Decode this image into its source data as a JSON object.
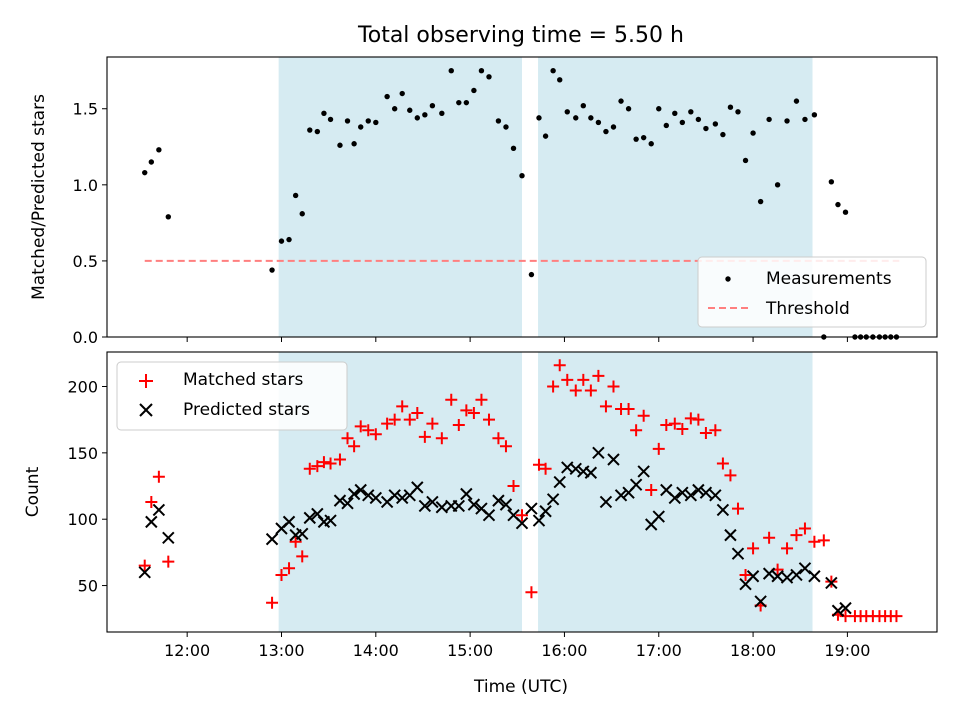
{
  "suptitle": "Total observing time = 5.50 h",
  "chart_data": [
    {
      "type": "scatter",
      "ylabel": "Matched/Predicted stars",
      "xlim": [
        11.15,
        19.95
      ],
      "ylim": [
        0,
        1.84
      ],
      "xticks": [
        12,
        13,
        14,
        15,
        16,
        17,
        18,
        19
      ],
      "yticks": [
        0.0,
        0.5,
        1.0,
        1.5
      ],
      "ytick_labels": [
        "0.0",
        "0.5",
        "1.0",
        "1.5"
      ],
      "shaded_intervals": [
        [
          12.97,
          15.55
        ],
        [
          15.72,
          18.63
        ]
      ],
      "shade_color": "#add8e6",
      "legend_position": "lower-right",
      "series": [
        {
          "name": "Measurements",
          "marker": "dot",
          "color": "#000000",
          "points": [
            [
              11.55,
              1.08
            ],
            [
              11.62,
              1.15
            ],
            [
              11.7,
              1.23
            ],
            [
              11.8,
              0.79
            ],
            [
              12.9,
              0.44
            ],
            [
              13.0,
              0.63
            ],
            [
              13.08,
              0.64
            ],
            [
              13.15,
              0.93
            ],
            [
              13.22,
              0.81
            ],
            [
              13.3,
              1.36
            ],
            [
              13.38,
              1.35
            ],
            [
              13.45,
              1.47
            ],
            [
              13.52,
              1.43
            ],
            [
              13.62,
              1.26
            ],
            [
              13.7,
              1.42
            ],
            [
              13.77,
              1.27
            ],
            [
              13.84,
              1.38
            ],
            [
              13.92,
              1.42
            ],
            [
              14.0,
              1.41
            ],
            [
              14.12,
              1.58
            ],
            [
              14.2,
              1.5
            ],
            [
              14.28,
              1.6
            ],
            [
              14.36,
              1.49
            ],
            [
              14.44,
              1.44
            ],
            [
              14.52,
              1.46
            ],
            [
              14.6,
              1.52
            ],
            [
              14.7,
              1.47
            ],
            [
              14.8,
              1.75
            ],
            [
              14.88,
              1.54
            ],
            [
              14.96,
              1.54
            ],
            [
              15.04,
              1.62
            ],
            [
              15.12,
              1.75
            ],
            [
              15.2,
              1.71
            ],
            [
              15.3,
              1.42
            ],
            [
              15.38,
              1.38
            ],
            [
              15.46,
              1.24
            ],
            [
              15.55,
              1.06
            ],
            [
              15.65,
              0.41
            ],
            [
              15.73,
              1.44
            ],
            [
              15.8,
              1.32
            ],
            [
              15.88,
              1.75
            ],
            [
              15.95,
              1.69
            ],
            [
              16.03,
              1.48
            ],
            [
              16.12,
              1.44
            ],
            [
              16.2,
              1.52
            ],
            [
              16.28,
              1.44
            ],
            [
              16.36,
              1.41
            ],
            [
              16.44,
              1.35
            ],
            [
              16.52,
              1.38
            ],
            [
              16.6,
              1.55
            ],
            [
              16.68,
              1.5
            ],
            [
              16.76,
              1.3
            ],
            [
              16.84,
              1.31
            ],
            [
              16.92,
              1.27
            ],
            [
              17.0,
              1.5
            ],
            [
              17.08,
              1.39
            ],
            [
              17.17,
              1.47
            ],
            [
              17.25,
              1.41
            ],
            [
              17.34,
              1.48
            ],
            [
              17.42,
              1.43
            ],
            [
              17.5,
              1.37
            ],
            [
              17.6,
              1.4
            ],
            [
              17.68,
              1.33
            ],
            [
              17.76,
              1.51
            ],
            [
              17.84,
              1.48
            ],
            [
              17.92,
              1.16
            ],
            [
              18.0,
              1.34
            ],
            [
              18.08,
              0.89
            ],
            [
              18.17,
              1.43
            ],
            [
              18.26,
              1.0
            ],
            [
              18.36,
              1.42
            ],
            [
              18.46,
              1.55
            ],
            [
              18.55,
              1.43
            ],
            [
              18.65,
              1.46
            ],
            [
              18.75,
              0.0
            ],
            [
              18.83,
              1.02
            ],
            [
              18.9,
              0.87
            ],
            [
              18.98,
              0.82
            ],
            [
              19.08,
              0.0
            ],
            [
              19.14,
              0.0
            ],
            [
              19.2,
              0.0
            ],
            [
              19.27,
              0.0
            ],
            [
              19.34,
              0.0
            ],
            [
              19.4,
              0.0
            ],
            [
              19.46,
              0.0
            ],
            [
              19.52,
              0.0
            ]
          ]
        },
        {
          "name": "Threshold",
          "type": "line",
          "style": "dashed",
          "color": "#ff7f7f",
          "points": [
            [
              11.55,
              0.5
            ],
            [
              19.55,
              0.5
            ]
          ]
        }
      ]
    },
    {
      "type": "scatter",
      "ylabel": "Count",
      "xlabel": "Time (UTC)",
      "xlim": [
        11.15,
        19.95
      ],
      "ylim": [
        15,
        226
      ],
      "xticks": [
        12,
        13,
        14,
        15,
        16,
        17,
        18,
        19
      ],
      "xtick_labels": [
        "12:00",
        "13:00",
        "14:00",
        "15:00",
        "16:00",
        "17:00",
        "18:00",
        "19:00"
      ],
      "yticks": [
        50,
        100,
        150,
        200
      ],
      "ytick_labels": [
        "50",
        "100",
        "150",
        "200"
      ],
      "shaded_intervals": [
        [
          12.97,
          15.55
        ],
        [
          15.72,
          18.63
        ]
      ],
      "shade_color": "#add8e6",
      "legend_position": "upper-left",
      "series": [
        {
          "name": "Matched stars",
          "marker": "plus",
          "color": "#ff0000",
          "points": [
            [
              11.55,
              65
            ],
            [
              11.62,
              113
            ],
            [
              11.7,
              132
            ],
            [
              11.8,
              68
            ],
            [
              12.9,
              37
            ],
            [
              13.0,
              58
            ],
            [
              13.08,
              63
            ],
            [
              13.15,
              83
            ],
            [
              13.22,
              72
            ],
            [
              13.3,
              138
            ],
            [
              13.38,
              140
            ],
            [
              13.45,
              143
            ],
            [
              13.52,
              142
            ],
            [
              13.62,
              145
            ],
            [
              13.7,
              161
            ],
            [
              13.77,
              155
            ],
            [
              13.84,
              170
            ],
            [
              13.92,
              167
            ],
            [
              14.0,
              164
            ],
            [
              14.12,
              172
            ],
            [
              14.2,
              175
            ],
            [
              14.28,
              185
            ],
            [
              14.36,
              175
            ],
            [
              14.44,
              180
            ],
            [
              14.52,
              162
            ],
            [
              14.6,
              172
            ],
            [
              14.7,
              161
            ],
            [
              14.8,
              190
            ],
            [
              14.88,
              171
            ],
            [
              14.96,
              182
            ],
            [
              15.04,
              180
            ],
            [
              15.12,
              190
            ],
            [
              15.2,
              175
            ],
            [
              15.3,
              161
            ],
            [
              15.38,
              155
            ],
            [
              15.46,
              125
            ],
            [
              15.55,
              103
            ],
            [
              15.65,
              45
            ],
            [
              15.73,
              141
            ],
            [
              15.8,
              138
            ],
            [
              15.88,
              200
            ],
            [
              15.95,
              216
            ],
            [
              16.03,
              205
            ],
            [
              16.12,
              197
            ],
            [
              16.2,
              205
            ],
            [
              16.28,
              197
            ],
            [
              16.36,
              208
            ],
            [
              16.44,
              185
            ],
            [
              16.52,
              200
            ],
            [
              16.6,
              183
            ],
            [
              16.68,
              183
            ],
            [
              16.76,
              167
            ],
            [
              16.84,
              178
            ],
            [
              16.92,
              122
            ],
            [
              17.0,
              153
            ],
            [
              17.08,
              171
            ],
            [
              17.17,
              172
            ],
            [
              17.25,
              168
            ],
            [
              17.34,
              176
            ],
            [
              17.42,
              175
            ],
            [
              17.5,
              165
            ],
            [
              17.6,
              167
            ],
            [
              17.68,
              142
            ],
            [
              17.76,
              133
            ],
            [
              17.84,
              108
            ],
            [
              17.92,
              58
            ],
            [
              18.0,
              78
            ],
            [
              18.08,
              35
            ],
            [
              18.17,
              86
            ],
            [
              18.26,
              62
            ],
            [
              18.36,
              78
            ],
            [
              18.46,
              88
            ],
            [
              18.55,
              93
            ],
            [
              18.65,
              83
            ],
            [
              18.75,
              84
            ],
            [
              18.83,
              53
            ],
            [
              18.9,
              28
            ],
            [
              18.98,
              27
            ],
            [
              19.08,
              27
            ],
            [
              19.14,
              27
            ],
            [
              19.2,
              27
            ],
            [
              19.27,
              27
            ],
            [
              19.34,
              27
            ],
            [
              19.4,
              27
            ],
            [
              19.46,
              27
            ],
            [
              19.52,
              27
            ]
          ]
        },
        {
          "name": "Predicted stars",
          "marker": "x",
          "color": "#000000",
          "points": [
            [
              11.55,
              60
            ],
            [
              11.62,
              98
            ],
            [
              11.7,
              107
            ],
            [
              11.8,
              86
            ],
            [
              12.9,
              85
            ],
            [
              13.0,
              93
            ],
            [
              13.08,
              98
            ],
            [
              13.15,
              88
            ],
            [
              13.22,
              89
            ],
            [
              13.3,
              101
            ],
            [
              13.38,
              104
            ],
            [
              13.45,
              98
            ],
            [
              13.52,
              99
            ],
            [
              13.62,
              114
            ],
            [
              13.7,
              112
            ],
            [
              13.77,
              119
            ],
            [
              13.84,
              122
            ],
            [
              13.92,
              118
            ],
            [
              14.0,
              116
            ],
            [
              14.12,
              113
            ],
            [
              14.2,
              118
            ],
            [
              14.28,
              116
            ],
            [
              14.36,
              118
            ],
            [
              14.44,
              124
            ],
            [
              14.52,
              110
            ],
            [
              14.6,
              113
            ],
            [
              14.7,
              109
            ],
            [
              14.8,
              110
            ],
            [
              14.88,
              110
            ],
            [
              14.96,
              119
            ],
            [
              15.04,
              111
            ],
            [
              15.12,
              108
            ],
            [
              15.2,
              103
            ],
            [
              15.3,
              114
            ],
            [
              15.38,
              111
            ],
            [
              15.46,
              103
            ],
            [
              15.55,
              97
            ],
            [
              15.65,
              108
            ],
            [
              15.73,
              99
            ],
            [
              15.8,
              106
            ],
            [
              15.88,
              115
            ],
            [
              15.95,
              128
            ],
            [
              16.03,
              139
            ],
            [
              16.12,
              138
            ],
            [
              16.2,
              136
            ],
            [
              16.28,
              135
            ],
            [
              16.36,
              150
            ],
            [
              16.44,
              113
            ],
            [
              16.52,
              145
            ],
            [
              16.6,
              118
            ],
            [
              16.68,
              120
            ],
            [
              16.76,
              126
            ],
            [
              16.84,
              136
            ],
            [
              16.92,
              96
            ],
            [
              17.0,
              102
            ],
            [
              17.08,
              122
            ],
            [
              17.17,
              116
            ],
            [
              17.25,
              120
            ],
            [
              17.34,
              118
            ],
            [
              17.42,
              122
            ],
            [
              17.5,
              120
            ],
            [
              17.6,
              118
            ],
            [
              17.68,
              107
            ],
            [
              17.76,
              88
            ],
            [
              17.84,
              74
            ],
            [
              17.92,
              51
            ],
            [
              18.0,
              57
            ],
            [
              18.08,
              38
            ],
            [
              18.17,
              59
            ],
            [
              18.26,
              57
            ],
            [
              18.36,
              56
            ],
            [
              18.46,
              58
            ],
            [
              18.55,
              63
            ],
            [
              18.65,
              57
            ],
            [
              18.83,
              52
            ],
            [
              18.9,
              31
            ],
            [
              18.98,
              33
            ]
          ]
        }
      ]
    }
  ]
}
